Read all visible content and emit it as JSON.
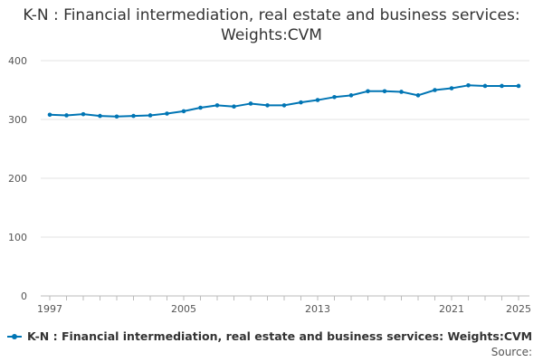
{
  "chart_data": {
    "type": "line",
    "title": "K-N : Financial intermediation, real estate and business services: Weights:CVM",
    "x": [
      1997,
      1998,
      1999,
      2000,
      2001,
      2002,
      2003,
      2004,
      2005,
      2006,
      2007,
      2008,
      2009,
      2010,
      2011,
      2012,
      2013,
      2014,
      2015,
      2016,
      2017,
      2018,
      2019,
      2020,
      2021,
      2022,
      2023,
      2024,
      2025
    ],
    "series": [
      {
        "name": "K-N : Financial intermediation, real estate and business services: Weights:CVM",
        "values": [
          308,
          307,
          309,
          306,
          305,
          306,
          307,
          310,
          314,
          320,
          324,
          322,
          327,
          324,
          324,
          329,
          333,
          338,
          341,
          348,
          348,
          347,
          341,
          350,
          353,
          358,
          357,
          357,
          357
        ]
      }
    ],
    "x_tick_labels": [
      "1997",
      "2005",
      "2013",
      "2021",
      "2025"
    ],
    "y_ticks": [
      0,
      100,
      200,
      300,
      400
    ],
    "ylim": [
      0,
      400
    ],
    "xlim": [
      1997,
      2025
    ],
    "xlabel": "",
    "ylabel": "",
    "grid": true,
    "legend_position": "bottom-left",
    "line_color": "#0075b4",
    "source_label": "Source:"
  }
}
